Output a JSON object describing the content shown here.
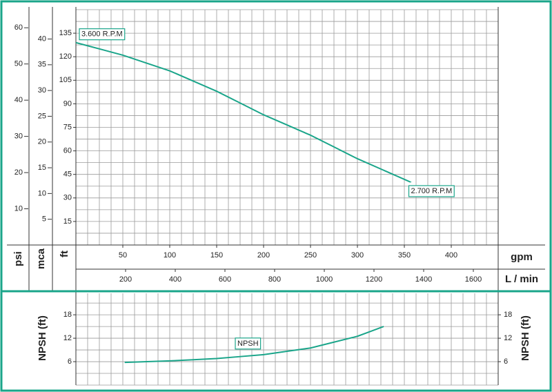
{
  "chart_data": [
    {
      "type": "line",
      "xlabel": "gpm",
      "xlim": [
        0,
        450
      ],
      "xticks": [
        50,
        100,
        150,
        200,
        250,
        300,
        350,
        400
      ],
      "x2label": "L / min",
      "x2lim": [
        0,
        1700
      ],
      "x2ticks": [
        200,
        400,
        600,
        800,
        1000,
        1200,
        1400,
        1600
      ],
      "ylabel": "ft",
      "ylim": [
        0,
        150
      ],
      "yticks": [
        15,
        30,
        45,
        60,
        75,
        90,
        105,
        120,
        135
      ],
      "y2label": "mca",
      "y2lim": [
        0,
        45.7
      ],
      "y2ticks": [
        5,
        10,
        15,
        20,
        25,
        30,
        35,
        40
      ],
      "y3label": "psi",
      "y3lim": [
        0,
        65
      ],
      "y3ticks": [
        10,
        20,
        30,
        40,
        50,
        60
      ],
      "grid": true,
      "grid_step_x": 12.5,
      "grid_step_y": 7.5,
      "series": [
        {
          "start_label": "3.600 R.P.M",
          "end_label": "2.700 R.P.M",
          "color": "#1aa58a",
          "x": [
            0,
            50,
            100,
            150,
            200,
            250,
            300,
            357
          ],
          "values": [
            129,
            121,
            111,
            98,
            83,
            70,
            55,
            40
          ]
        }
      ]
    },
    {
      "type": "line",
      "ylabel": "NPSH (ft)",
      "xlim": [
        0,
        450
      ],
      "ylim": [
        0,
        23.5
      ],
      "yticks": [
        6,
        12,
        18
      ],
      "grid": true,
      "grid_step_x": 12.5,
      "grid_step_y": 3,
      "series": [
        {
          "name": "NPSH",
          "color": "#1aa58a",
          "x": [
            52,
            100,
            150,
            200,
            250,
            300,
            328
          ],
          "values": [
            5.8,
            6.2,
            6.8,
            7.8,
            9.5,
            12.5,
            15
          ]
        }
      ]
    }
  ]
}
